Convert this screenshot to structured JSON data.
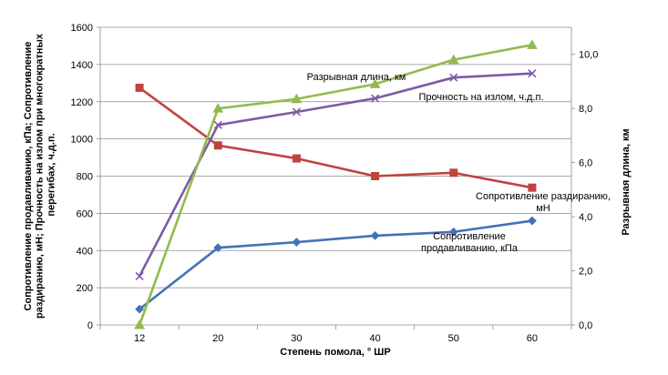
{
  "chart_data": {
    "type": "line",
    "x": [
      "12",
      "20",
      "30",
      "40",
      "50",
      "60"
    ],
    "xlabel": "Степень помола, ° ШР",
    "ylabel_left_lines": [
      "Сопротивление продавливанию, кПа; Сопротивление",
      "раздиранию, мН; Прочность на излом при многократных",
      "перегибах, ч.д.п."
    ],
    "ylabel_right": "Разрывная длина, км",
    "ylim_left": [
      0,
      1600
    ],
    "yticks_left": [
      "0",
      "200",
      "400",
      "600",
      "800",
      "1000",
      "1200",
      "1400",
      "1600"
    ],
    "ylim_right": [
      0,
      11
    ],
    "yticks_right": [
      "0,0",
      "2,0",
      "4,0",
      "6,0",
      "8,0",
      "10,0"
    ],
    "grid": true,
    "series": [
      {
        "key": "prodav",
        "axis": "left",
        "color": "#4372b6",
        "marker": "diamond",
        "values": [
          85,
          415,
          445,
          480,
          500,
          560
        ],
        "label_lines": [
          "Сопротивление",
          "продавливанию, кПа"
        ]
      },
      {
        "key": "razdir",
        "axis": "left",
        "color": "#c0433f",
        "marker": "square",
        "values": [
          1275,
          965,
          895,
          800,
          818,
          738
        ],
        "label_lines": [
          "Сопротивление раздиранию,",
          "мН"
        ]
      },
      {
        "key": "izlom",
        "axis": "left",
        "color": "#7b5ba6",
        "marker": "x",
        "values": [
          262,
          1075,
          1145,
          1218,
          1330,
          1352
        ],
        "label_lines": [
          "Прочность на излом, ч.д.п."
        ]
      },
      {
        "key": "razryv",
        "axis": "right",
        "color": "#92bb4f",
        "marker": "triangle",
        "values": [
          0.0,
          8.0,
          8.35,
          8.9,
          9.8,
          10.35
        ],
        "label_lines": [
          "Разрывная длина, км"
        ]
      }
    ]
  }
}
